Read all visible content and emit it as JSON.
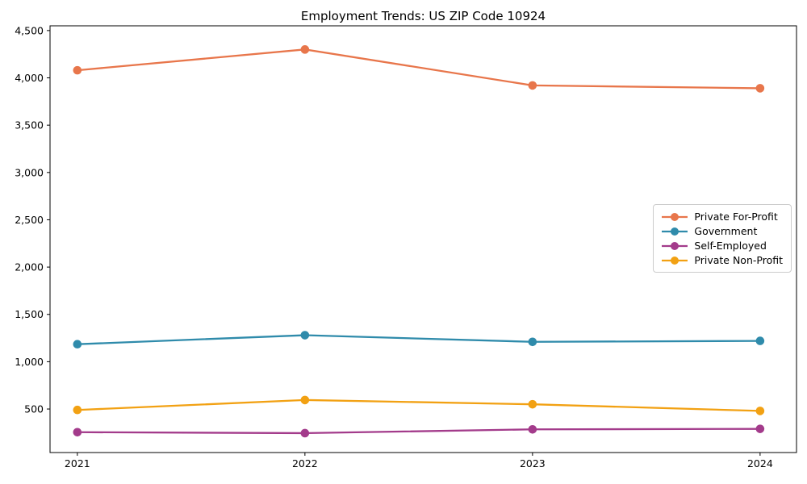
{
  "chart_data": {
    "type": "line",
    "title": "Employment Trends: US ZIP Code 10924",
    "x": [
      2021,
      2022,
      2023,
      2024
    ],
    "x_tick_labels": [
      "2021",
      "2022",
      "2023",
      "2024"
    ],
    "y_tick_values": [
      500,
      1000,
      1500,
      2000,
      2500,
      3000,
      3500,
      4000,
      4500
    ],
    "y_tick_labels": [
      "500",
      "1,000",
      "1,500",
      "2,000",
      "2,500",
      "3,000",
      "3,500",
      "4,000",
      "4,500"
    ],
    "xlim": [
      2020.88,
      2024.16
    ],
    "ylim": [
      40,
      4550
    ],
    "grid": false,
    "legend_position": "center-right",
    "series": [
      {
        "name": "Private For-Profit",
        "color": "#E8764B",
        "values": [
          4080,
          4300,
          3920,
          3890
        ]
      },
      {
        "name": "Government",
        "color": "#2F8BAB",
        "values": [
          1185,
          1280,
          1210,
          1220
        ]
      },
      {
        "name": "Self-Employed",
        "color": "#A33B8B",
        "values": [
          255,
          245,
          285,
          290
        ]
      },
      {
        "name": "Private Non-Profit",
        "color": "#F2A113",
        "values": [
          490,
          595,
          550,
          480
        ]
      }
    ]
  }
}
